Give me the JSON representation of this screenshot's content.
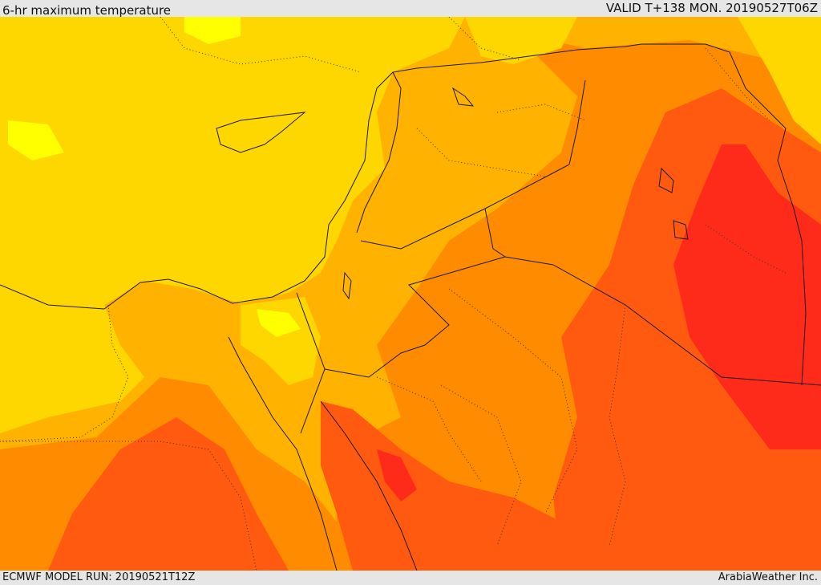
{
  "header": {
    "title": "6-hr maximum temperature",
    "valid_label": "VALID T+138 MON. 20190527T06Z"
  },
  "footer": {
    "model_run": "ECMWF MODEL RUN: 20190521T12Z",
    "credit": "ArabiaWeather Inc."
  },
  "map": {
    "type": "weather-map",
    "field": "6-hr maximum temperature",
    "colors": {
      "cool": "#ffff00",
      "mild": "#ffd700",
      "warm": "#ffb300",
      "hot": "#ff8c00",
      "very_hot": "#ff5a10",
      "extreme": "#ff2b1a"
    }
  }
}
